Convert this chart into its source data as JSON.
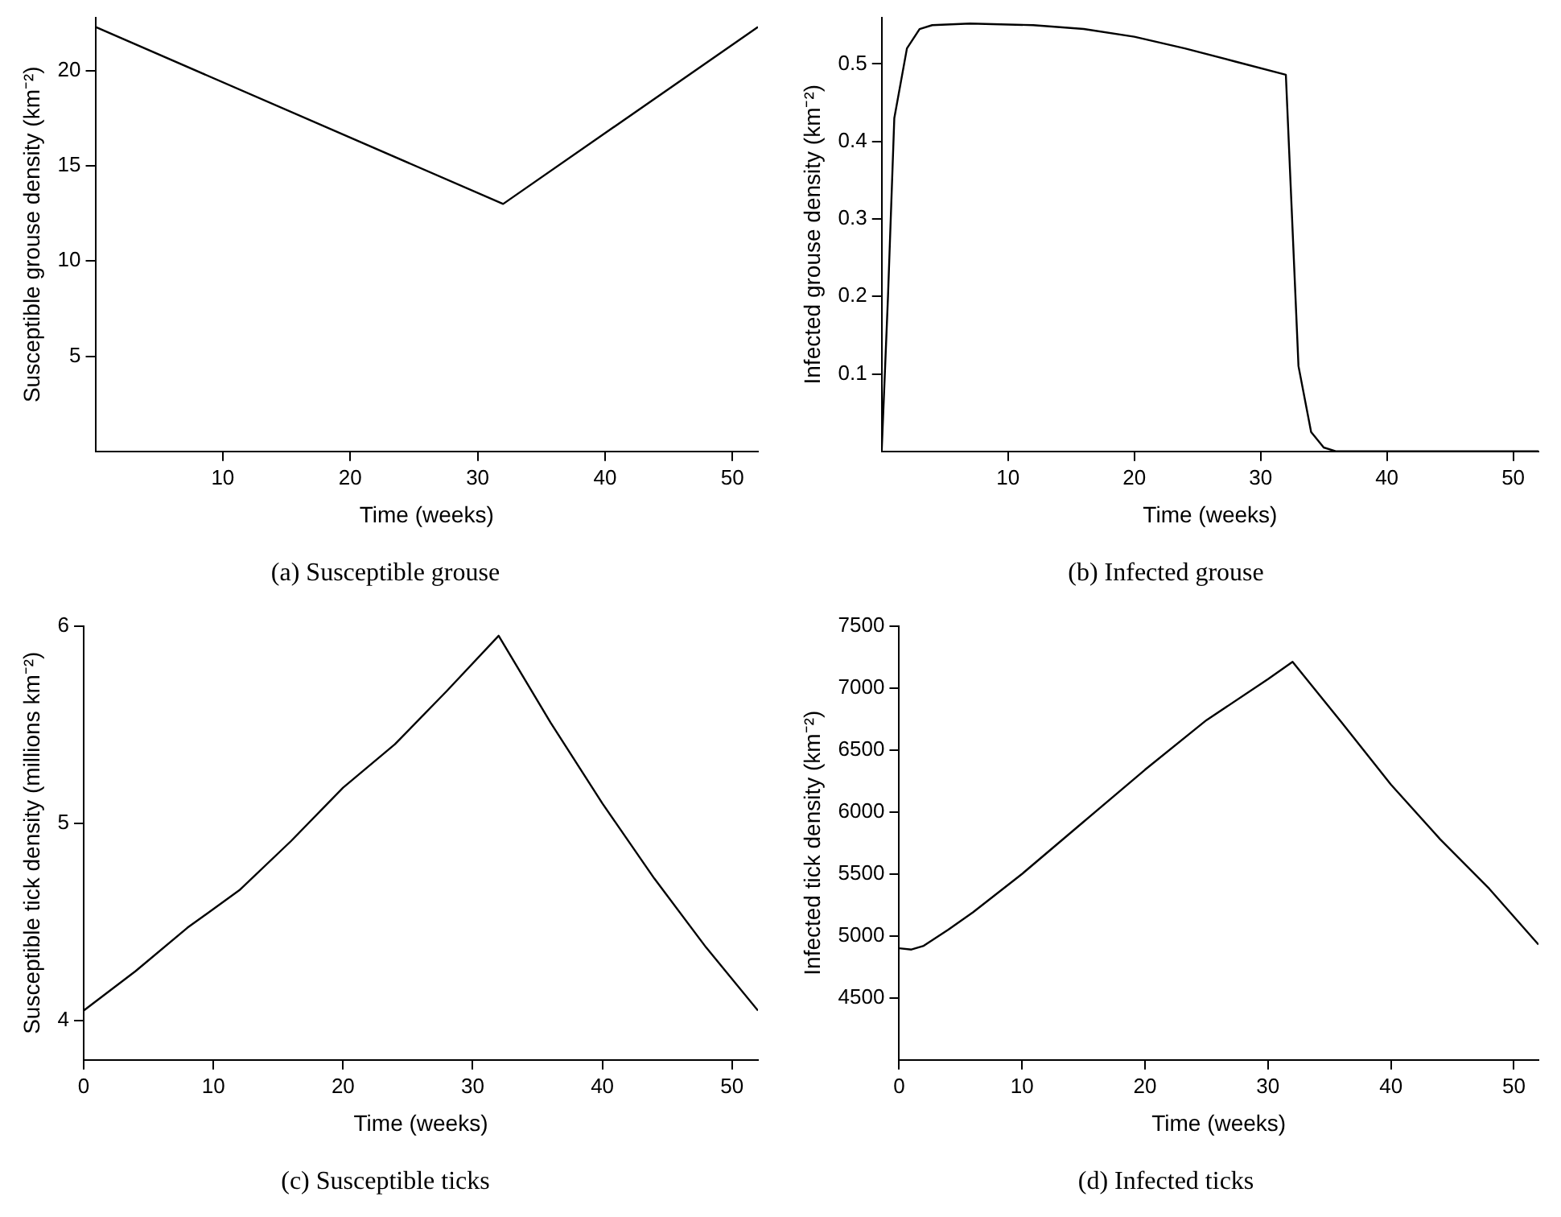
{
  "chart_data": [
    {
      "type": "line",
      "title": "(a) Susceptible grouse",
      "xlabel": "Time (weeks)",
      "ylabel": "Susceptible grouse density (km⁻²)",
      "x": [
        0,
        32,
        52
      ],
      "values": [
        22.3,
        13,
        22.3
      ],
      "color": "#000000",
      "xlim": [
        0,
        52
      ],
      "ylim": [
        0,
        22.8
      ],
      "xticks": [
        10,
        20,
        30,
        40,
        50
      ],
      "yticks": [
        5,
        10,
        15,
        20
      ],
      "grid": false,
      "marker": "none"
    },
    {
      "type": "line",
      "title": "(b) Infected grouse",
      "xlabel": "Time (weeks)",
      "ylabel": "Infected grouse density (km⁻²)",
      "x": [
        0,
        0.5,
        1,
        2,
        3,
        4,
        7,
        12,
        16,
        20,
        24,
        28,
        32,
        33,
        34,
        35,
        36,
        52
      ],
      "values": [
        0,
        0.2,
        0.43,
        0.52,
        0.545,
        0.55,
        0.552,
        0.55,
        0.545,
        0.535,
        0.52,
        0.503,
        0.486,
        0.11,
        0.025,
        0.005,
        0,
        0
      ],
      "color": "#000000",
      "xlim": [
        0,
        52
      ],
      "ylim": [
        0,
        0.56
      ],
      "xticks": [
        10,
        20,
        30,
        40,
        50
      ],
      "yticks": [
        0.1,
        0.2,
        0.3,
        0.4,
        0.5
      ],
      "grid": false,
      "marker": "none"
    },
    {
      "type": "line",
      "title": "(c) Susceptible ticks",
      "xlabel": "Time (weeks)",
      "ylabel": "Susceptible tick density (millions km⁻²)",
      "x": [
        0,
        4,
        8,
        12,
        16,
        20,
        24,
        28,
        32,
        36,
        40,
        44,
        48,
        52
      ],
      "values": [
        4.05,
        4.25,
        4.47,
        4.66,
        4.91,
        5.18,
        5.4,
        5.67,
        5.95,
        5.51,
        5.1,
        4.72,
        4.37,
        4.05
      ],
      "color": "#000000",
      "xlim": [
        0,
        52
      ],
      "ylim": [
        3.8,
        6
      ],
      "xticks": [
        0,
        10,
        20,
        30,
        40,
        50
      ],
      "yticks": [
        4,
        5,
        6
      ],
      "grid": false,
      "marker": "none"
    },
    {
      "type": "line",
      "title": "(d) Infected ticks",
      "xlabel": "Time (weeks)",
      "ylabel": "Infected tick density (km⁻²)",
      "x": [
        0,
        1,
        2,
        4,
        6,
        10,
        15,
        20,
        25,
        30,
        32,
        36,
        40,
        44,
        48,
        52
      ],
      "values": [
        4900,
        4890,
        4920,
        5050,
        5190,
        5500,
        5920,
        6340,
        6740,
        7070,
        7210,
        6720,
        6220,
        5780,
        5380,
        4930
      ],
      "color": "#000000",
      "xlim": [
        0,
        52
      ],
      "ylim": [
        4000,
        7500
      ],
      "xticks": [
        0,
        10,
        20,
        30,
        40,
        50
      ],
      "yticks": [
        4500,
        5000,
        5500,
        6000,
        6500,
        7000,
        7500
      ],
      "grid": false,
      "marker": "none"
    }
  ]
}
